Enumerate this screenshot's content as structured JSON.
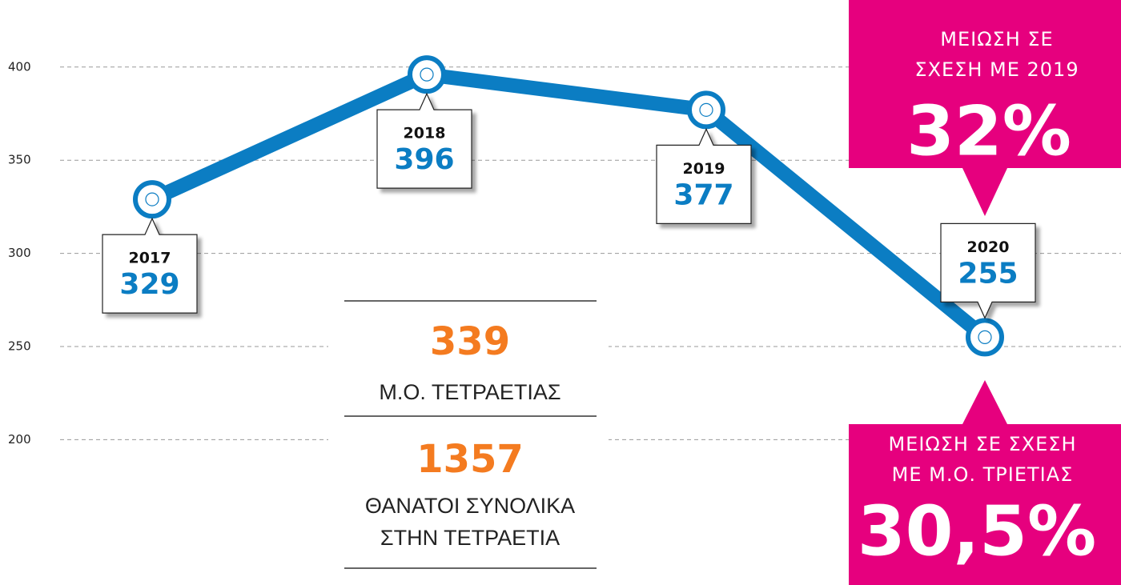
{
  "chart_data": {
    "type": "line",
    "categories": [
      "2017",
      "2018",
      "2019",
      "2020"
    ],
    "values": [
      329,
      396,
      377,
      255
    ],
    "color": "#0b7dc3",
    "accent_color": "#f47b20",
    "highlight_color": "#e6007e",
    "ylim": [
      122,
      436
    ],
    "yticks": [
      200,
      250,
      300,
      350,
      400
    ],
    "grid": true,
    "summary": {
      "average": 339,
      "average_label": "Μ.Ο. ΤΕΤΡΑΕΤΙΑΣ",
      "total": 1357,
      "total_label": [
        "ΘΑΝΑΤΟΙ ΣΥΝΟΛΙΚΑ",
        "ΣΤΗΝ ΤΕΤΡΑΕΤΙΑ"
      ]
    },
    "callouts": [
      {
        "lines": [
          "ΜΕΙΩΣΗ ΣΕ",
          "ΣΧΕΣΗ ΜΕ 2019"
        ],
        "value": "32%"
      },
      {
        "lines": [
          "ΜΕΙΩΣΗ ΣΕ ΣΧΕΣΗ",
          "ΜΕ Μ.Ο. ΤΡΙΕΤΙΑΣ"
        ],
        "value": "30,5%"
      }
    ]
  }
}
